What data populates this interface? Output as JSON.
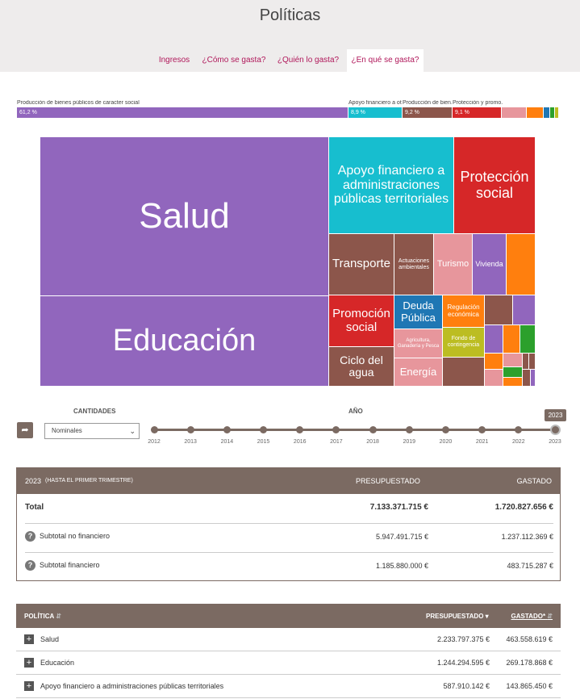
{
  "page": {
    "title": "Políticas"
  },
  "tabs": [
    {
      "label": "Ingresos"
    },
    {
      "label": "¿Cómo se gasta?"
    },
    {
      "label": "¿Quién lo gasta?"
    },
    {
      "label": "¿En qué se gasta?"
    }
  ],
  "stacked_bar": [
    {
      "label": "Producción de bienes públicos de caracter social",
      "pct": "61,2 %",
      "color": "#9166bd"
    },
    {
      "label": "Apoyo financiero a ot...",
      "pct": "8,9 %",
      "color": "#17becf"
    },
    {
      "label": "Producción de bien...",
      "pct": "9,2 %",
      "color": "#8c564b"
    },
    {
      "label": "Protección y promo...",
      "pct": "9,1 %",
      "color": "#d62728"
    },
    {
      "label": "",
      "pct": "",
      "color": "#e7969c"
    },
    {
      "label": "",
      "pct": "",
      "color": "#ff7f0e"
    },
    {
      "label": "",
      "pct": "",
      "color": "#1f77b4"
    },
    {
      "label": "",
      "pct": "",
      "color": "#2ca02c"
    },
    {
      "label": "",
      "pct": "",
      "color": "#bcbd22"
    }
  ],
  "treemap": {
    "salud": "Salud",
    "educacion": "Educación",
    "apoyo": "Apoyo financiero a administraciones públicas territoriales",
    "proteccion": "Protección social",
    "transporte": "Transporte",
    "actuaciones": "Actuaciones ambientales",
    "turismo": "Turismo",
    "vivienda": "Vivienda",
    "promocion": "Promoción social",
    "deuda": "Deuda Pública",
    "regulacion": "Regulación económica",
    "ciclo": "Ciclo del agua",
    "agricultura": "Agricultura, Ganadería y Pesca",
    "fondo": "Fondo de contingencia",
    "energia": "Energía"
  },
  "controls": {
    "cantidades_label": "CANTIDADES",
    "anio_label": "AÑO",
    "select_value": "Nominales",
    "share_icon": "share-icon",
    "years": [
      "2012",
      "2013",
      "2014",
      "2015",
      "2016",
      "2017",
      "2018",
      "2019",
      "2020",
      "2021",
      "2022",
      "2023"
    ],
    "selected_year": "2023"
  },
  "summary": {
    "header_year": "2023",
    "header_note": "(HASTA EL PRIMER TRIMESTRE)",
    "col_presupuestado": "PRESUPUESTADO",
    "col_gastado": "GASTADO",
    "rows": [
      {
        "label": "Total",
        "presupuestado": "7.133.371.715 €",
        "gastado": "1.720.827.656 €"
      },
      {
        "label": "Subtotal no financiero",
        "presupuestado": "5.947.491.715 €",
        "gastado": "1.237.112.369 €"
      },
      {
        "label": "Subtotal financiero",
        "presupuestado": "1.185.880.000 €",
        "gastado": "483.715.287 €"
      }
    ]
  },
  "policy_table": {
    "col_politica": "POLÍTICA",
    "col_presupuestado": "PRESUPUESTADO",
    "col_gastado": "GASTADO*",
    "rows": [
      {
        "label": "Salud",
        "presupuestado": "2.233.797.375 €",
        "gastado": "463.558.619 €"
      },
      {
        "label": "Educación",
        "presupuestado": "1.244.294.595 €",
        "gastado": "269.178.868 €"
      },
      {
        "label": "Apoyo financiero a administraciones públicas territoriales",
        "presupuestado": "587.910.142 €",
        "gastado": "143.865.450 €"
      }
    ]
  },
  "colors": {
    "header_brown": "#7b6a62",
    "accent": "#b0175a"
  }
}
